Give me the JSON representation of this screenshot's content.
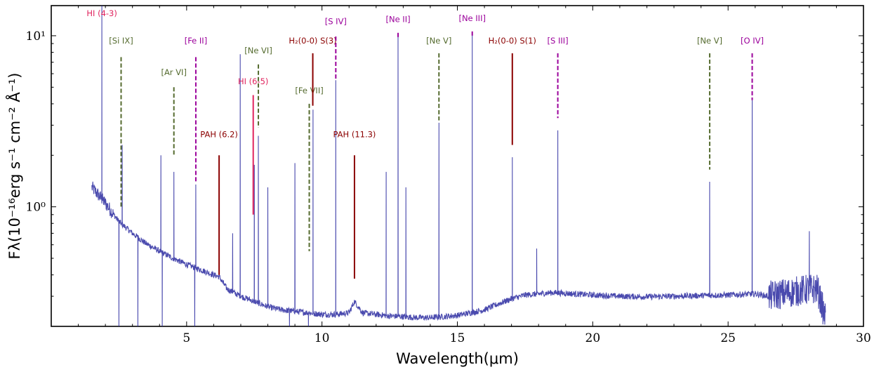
{
  "chart_data": {
    "type": "line",
    "xlabel": "Wavelength(μm)",
    "ylabel": "Fλ(10⁻¹⁶erg s⁻¹ cm⁻² Å⁻¹)",
    "xlim": [
      0,
      30
    ],
    "ylim": [
      0.2,
      15
    ],
    "yscale": "log",
    "x_ticks": [
      5,
      10,
      15,
      20,
      25,
      30
    ],
    "x_tick_labels": [
      "5",
      "10",
      "15",
      "20",
      "25",
      "30"
    ],
    "y_ticks": [
      1,
      10
    ],
    "y_tick_labels": [
      "10⁰",
      "10¹"
    ],
    "series_color": "#2a2aa0",
    "continuum": [
      [
        1.5,
        1.3
      ],
      [
        2.0,
        1.05
      ],
      [
        2.5,
        0.82
      ],
      [
        3.0,
        0.7
      ],
      [
        3.5,
        0.61
      ],
      [
        4.0,
        0.55
      ],
      [
        4.5,
        0.5
      ],
      [
        5.0,
        0.46
      ],
      [
        5.5,
        0.43
      ],
      [
        6.0,
        0.4
      ],
      [
        6.2,
        0.39
      ],
      [
        6.5,
        0.33
      ],
      [
        7.0,
        0.3
      ],
      [
        7.5,
        0.28
      ],
      [
        8.0,
        0.26
      ],
      [
        8.5,
        0.25
      ],
      [
        9.0,
        0.245
      ],
      [
        9.5,
        0.24
      ],
      [
        10.0,
        0.235
      ],
      [
        10.5,
        0.235
      ],
      [
        11.0,
        0.24
      ],
      [
        11.2,
        0.28
      ],
      [
        11.5,
        0.24
      ],
      [
        12.0,
        0.235
      ],
      [
        12.5,
        0.23
      ],
      [
        13.0,
        0.228
      ],
      [
        13.5,
        0.225
      ],
      [
        14.0,
        0.225
      ],
      [
        14.5,
        0.228
      ],
      [
        15.0,
        0.232
      ],
      [
        15.5,
        0.24
      ],
      [
        16.0,
        0.25
      ],
      [
        16.5,
        0.27
      ],
      [
        17.0,
        0.29
      ],
      [
        17.5,
        0.305
      ],
      [
        18.0,
        0.31
      ],
      [
        18.5,
        0.315
      ],
      [
        19.0,
        0.312
      ],
      [
        20.0,
        0.305
      ],
      [
        21.0,
        0.3
      ],
      [
        22.0,
        0.298
      ],
      [
        23.0,
        0.3
      ],
      [
        24.0,
        0.303
      ],
      [
        25.0,
        0.305
      ],
      [
        26.0,
        0.31
      ],
      [
        26.5,
        0.3
      ],
      [
        27.0,
        0.31
      ],
      [
        27.5,
        0.32
      ],
      [
        28.0,
        0.33
      ],
      [
        28.3,
        0.33
      ],
      [
        28.6,
        0.22
      ]
    ],
    "emission_peaks": [
      [
        1.87,
        15
      ],
      [
        2.62,
        2.3
      ],
      [
        4.05,
        2.0
      ],
      [
        4.53,
        1.6
      ],
      [
        5.34,
        1.35
      ],
      [
        6.7,
        0.7
      ],
      [
        6.98,
        7.8
      ],
      [
        7.5,
        1.75
      ],
      [
        7.65,
        2.6
      ],
      [
        8.0,
        1.3
      ],
      [
        9.0,
        1.8
      ],
      [
        9.67,
        3.7
      ],
      [
        10.51,
        5.5
      ],
      [
        12.37,
        1.6
      ],
      [
        12.81,
        10.0
      ],
      [
        13.1,
        1.3
      ],
      [
        14.32,
        3.1
      ],
      [
        15.55,
        10.1
      ],
      [
        17.03,
        1.95
      ],
      [
        17.93,
        0.57
      ],
      [
        18.71,
        2.8
      ],
      [
        24.32,
        1.4
      ],
      [
        25.89,
        4.2
      ],
      [
        28.0,
        0.72
      ]
    ],
    "absorption_dips": [
      [
        2.5,
        0.2
      ],
      [
        3.2,
        0.2
      ],
      [
        4.1,
        0.2
      ],
      [
        5.3,
        0.2
      ],
      [
        8.8,
        0.2
      ],
      [
        9.5,
        0.2
      ]
    ],
    "line_labels": [
      {
        "label": "HI (4-3)",
        "x": 1.87,
        "style": "solid",
        "color": "#e0245e",
        "y_top": 15,
        "y_bottom": 15,
        "text_y": 13.0
      },
      {
        "label": "[Si IX]",
        "x": 2.58,
        "style": "dashed",
        "color": "#556b2f",
        "y_top": 7.5,
        "y_bottom": 1.0,
        "text_y": 9.0
      },
      {
        "label": "[Ar VI]",
        "x": 4.53,
        "style": "dashed",
        "color": "#556b2f",
        "y_top": 5.0,
        "y_bottom": 2.0,
        "text_y": 5.9
      },
      {
        "label": "[Fe II]",
        "x": 5.34,
        "style": "dashed",
        "color": "#9b009b",
        "y_top": 7.5,
        "y_bottom": 1.4,
        "text_y": 9.0
      },
      {
        "label": "PAH (6.2)",
        "x": 6.2,
        "style": "solid",
        "color": "#8b0000",
        "y_top": 2.0,
        "y_bottom": 0.4,
        "text_y": 2.55
      },
      {
        "label": "[Ne VI]",
        "x": 7.65,
        "style": "dashed",
        "color": "#556b2f",
        "y_top": 6.8,
        "y_bottom": 2.9,
        "text_y": 7.9
      },
      {
        "label": "HI (6-5)",
        "x": 7.46,
        "style": "solid",
        "color": "#e0245e",
        "y_top": 4.5,
        "y_bottom": 0.9,
        "text_y": 5.2
      },
      {
        "label": "[Fe VII]",
        "x": 9.53,
        "style": "dashed",
        "color": "#556b2f",
        "y_top": 4.0,
        "y_bottom": 0.55,
        "text_y": 4.6
      },
      {
        "label": "H₂(0-0) S(3)",
        "x": 9.66,
        "style": "solid",
        "color": "#8b0000",
        "y_top": 7.9,
        "y_bottom": 3.9,
        "text_y": 9.0
      },
      {
        "label": "[S IV]",
        "x": 10.51,
        "style": "dashed",
        "color": "#9b009b",
        "y_top": 9.9,
        "y_bottom": 5.6,
        "text_y": 11.7
      },
      {
        "label": "PAH (11.3)",
        "x": 11.2,
        "style": "solid",
        "color": "#8b0000",
        "y_top": 2.0,
        "y_bottom": 0.38,
        "text_y": 2.55
      },
      {
        "label": "[Ne II]",
        "x": 12.81,
        "style": "dashed",
        "color": "#9b009b",
        "y_top": 10.4,
        "y_bottom": 9.8,
        "text_y": 12.0
      },
      {
        "label": "[Ne V]",
        "x": 14.32,
        "style": "dashed",
        "color": "#556b2f",
        "y_top": 7.9,
        "y_bottom": 3.2,
        "text_y": 9.0
      },
      {
        "label": "[Ne III]",
        "x": 15.55,
        "style": "dashed",
        "color": "#9b009b",
        "y_top": 10.6,
        "y_bottom": 9.8,
        "text_y": 12.2
      },
      {
        "label": "H₂(0-0) S(1)",
        "x": 17.03,
        "style": "solid",
        "color": "#8b0000",
        "y_top": 7.9,
        "y_bottom": 2.3,
        "text_y": 9.0
      },
      {
        "label": "[S III]",
        "x": 18.71,
        "style": "dashed",
        "color": "#9b009b",
        "y_top": 7.9,
        "y_bottom": 3.3,
        "text_y": 9.0
      },
      {
        "label": "[Ne V]",
        "x": 24.32,
        "style": "dashed",
        "color": "#556b2f",
        "y_top": 7.9,
        "y_bottom": 1.65,
        "text_y": 9.0
      },
      {
        "label": "[O IV]",
        "x": 25.89,
        "style": "dashed",
        "color": "#9b009b",
        "y_top": 7.9,
        "y_bottom": 4.2,
        "text_y": 9.0
      }
    ]
  }
}
